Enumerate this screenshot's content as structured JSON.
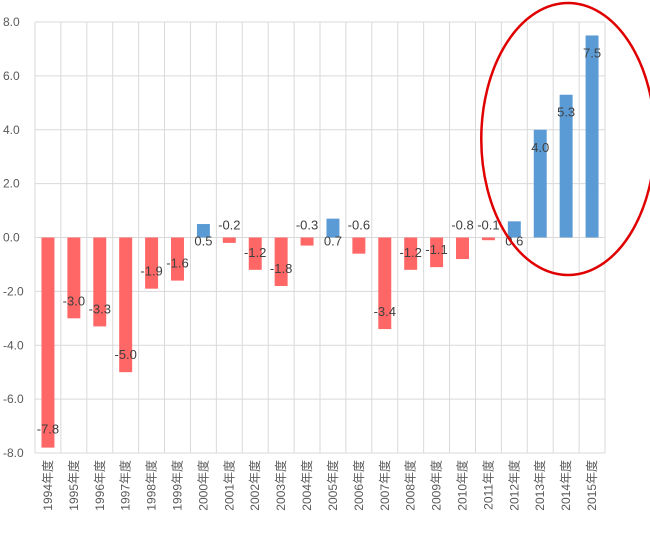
{
  "chart_data": {
    "type": "bar",
    "categories": [
      "1994年度",
      "1995年度",
      "1996年度",
      "1997年度",
      "1998年度",
      "1999年度",
      "2000年度",
      "2001年度",
      "2002年度",
      "2003年度",
      "2004年度",
      "2005年度",
      "2006年度",
      "2007年度",
      "2008年度",
      "2009年度",
      "2010年度",
      "2011年度",
      "2012年度",
      "2013年度",
      "2014年度",
      "2015年度"
    ],
    "values": [
      -7.8,
      -3.0,
      -3.3,
      -5.0,
      -1.9,
      -1.6,
      0.5,
      -0.2,
      -1.2,
      -1.8,
      -0.3,
      0.7,
      -0.6,
      -3.4,
      -1.2,
      -1.1,
      -0.8,
      -0.1,
      0.6,
      4.0,
      5.3,
      7.5
    ],
    "data_labels": [
      "-7.8",
      "-3.0",
      "-3.3",
      "-5.0",
      "-1.9",
      "-1.6",
      "0.5",
      "-0.2",
      "-1.2",
      "-1.8",
      "-0.3",
      "0.7",
      "-0.6",
      "-3.4",
      "-1.2",
      "-1.1",
      "-0.8",
      "-0.1",
      "0.6",
      "4.0",
      "5.3",
      "7.5"
    ],
    "ylim": [
      -8.0,
      8.0
    ],
    "yticks": [
      "8.0",
      "6.0",
      "4.0",
      "2.0",
      "0.0",
      "-2.0",
      "-4.0",
      "-6.0",
      "-8.0"
    ],
    "ytick_values": [
      8,
      6,
      4,
      2,
      0,
      -2,
      -4,
      -6,
      -8
    ],
    "grid": true,
    "colors": {
      "positive": "#5b9bd5",
      "negative": "#ff6666",
      "grid": "#d9d9d9",
      "highlight_ellipse": "#e00000"
    },
    "annotation": {
      "shape": "ellipse",
      "highlights": [
        "2013年度",
        "2014年度",
        "2015年度"
      ]
    },
    "title": "",
    "xlabel": "",
    "ylabel": ""
  }
}
